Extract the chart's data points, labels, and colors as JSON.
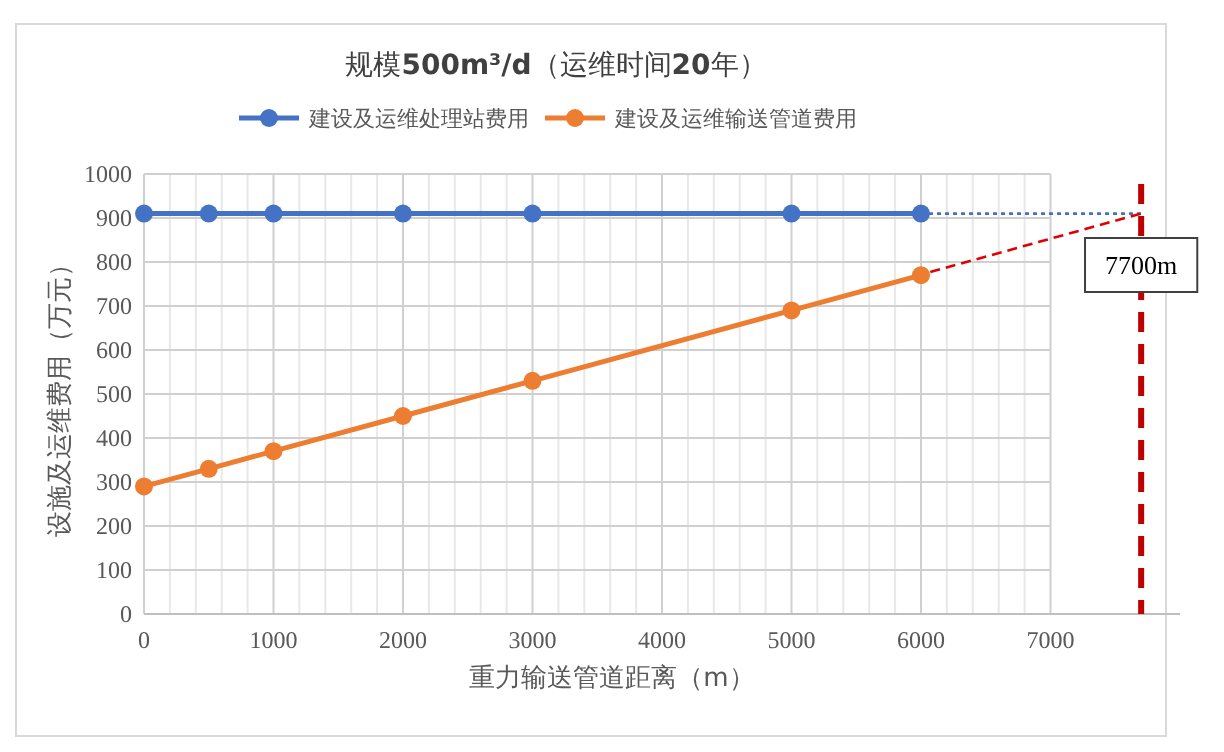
{
  "chart_data": {
    "type": "line",
    "title": "规模**500m³/d**（运维时间**20**年）",
    "xlabel": "重力输送管道距离（m）",
    "ylabel": "设施及运维费用（万元）",
    "xlim": [
      0,
      8000
    ],
    "ylim": [
      0,
      1000
    ],
    "xticks": [
      0,
      {
        "value": 200,
        "label": null
      },
      {
        "value": 400,
        "label": null
      },
      {
        "value": 600,
        "label": null
      },
      {
        "value": 800,
        "label": null
      },
      1000,
      {
        "value": 1200,
        "label": null
      },
      {
        "value": 1400,
        "label": null
      },
      {
        "value": 1600,
        "label": null
      },
      {
        "value": 1800,
        "label": null
      },
      2000,
      {
        "value": 2200,
        "label": null
      },
      {
        "value": 2400,
        "label": null
      },
      {
        "value": 2600,
        "label": null
      },
      {
        "value": 2800,
        "label": null
      },
      3000,
      {
        "value": 3200,
        "label": null
      },
      {
        "value": 3400,
        "label": null
      },
      {
        "value": 3600,
        "label": null
      },
      {
        "value": 3800,
        "label": null
      },
      4000,
      {
        "value": 4200,
        "label": null
      },
      {
        "value": 4400,
        "label": null
      },
      {
        "value": 4600,
        "label": null
      },
      {
        "value": 4800,
        "label": null
      },
      5000,
      {
        "value": 5200,
        "label": null
      },
      {
        "value": 5400,
        "label": null
      },
      {
        "value": 5600,
        "label": null
      },
      {
        "value": 5800,
        "label": null
      },
      6000,
      {
        "value": 6200,
        "label": null
      },
      {
        "value": 6400,
        "label": null
      },
      {
        "value": 6600,
        "label": null
      },
      {
        "value": 6800,
        "label": null
      },
      7000
    ],
    "yticks": [
      0,
      100,
      200,
      300,
      400,
      500,
      600,
      700,
      800,
      900,
      1000
    ],
    "grid": true,
    "legend": "top",
    "marker": "circle",
    "series": [
      {
        "name": "建设及运维处理站费用",
        "color": "#4472c4",
        "x": [
          0,
          500,
          1000,
          2000,
          3000,
          5000,
          6000
        ],
        "values": [
          910,
          910,
          910,
          910,
          910,
          910,
          910
        ]
      },
      {
        "name": "建设及运维输送管道费用",
        "color": "#ed7d31",
        "x": [
          0,
          500,
          1000,
          2000,
          3000,
          5000,
          6000
        ],
        "values": [
          290,
          330,
          370,
          450,
          530,
          690,
          770
        ]
      },
      {
        "color": "#4472c4",
        "x": [
          6000,
          7700
        ],
        "values": [
          910,
          910
        ],
        "marker": "none",
        "line_style": "dotted"
      },
      {
        "color": "#e00000",
        "x": [
          5000,
          7700
        ],
        "values": [
          690,
          910
        ],
        "marker": "none",
        "line_style": "dashed"
      }
    ],
    "ref_lines": [
      {
        "axis": "x",
        "value": 7700,
        "label": "7700m",
        "color": "#c00000",
        "line_style": "dashed"
      }
    ]
  }
}
